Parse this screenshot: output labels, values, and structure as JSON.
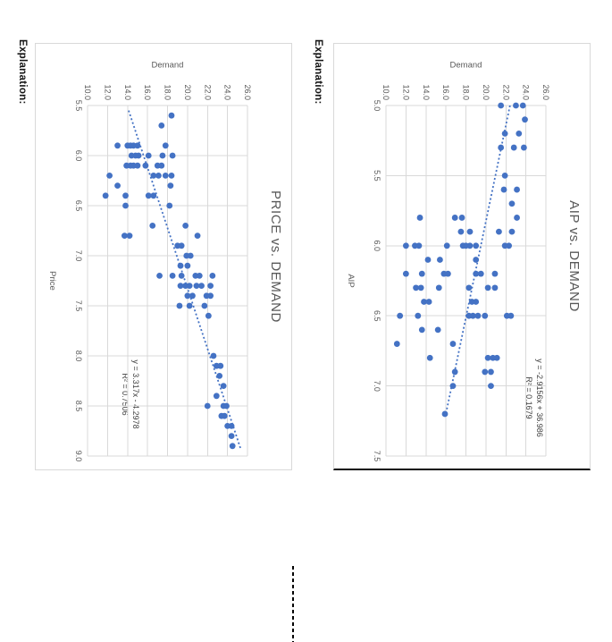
{
  "page": {
    "explanation_label": "Explanation:"
  },
  "colors": {
    "marker": "#4472C4",
    "trendline": "#4472C4",
    "grid": "#d9d9d9",
    "axis_text": "#595959",
    "equation_text": "#404040",
    "title_text": "#595959"
  },
  "chart_data": [
    {
      "type": "scatter",
      "title": "PRICE vs. DEMAND",
      "xlabel": "Price",
      "ylabel": "Demand",
      "xlim": [
        5.5,
        9.0
      ],
      "ylim": [
        10.0,
        26.0
      ],
      "x_ticks": [
        "5.5",
        "6.0",
        "6.5",
        "7.0",
        "7.5",
        "8.0",
        "8.5",
        "9.0"
      ],
      "y_ticks": [
        "10.0",
        "12.0",
        "14.0",
        "16.0",
        "18.0",
        "20.0",
        "22.0",
        "24.0",
        "26.0"
      ],
      "grid": true,
      "legend": "none",
      "marker_color": "#4472C4",
      "trendline": {
        "style": "dotted",
        "slope": 3.317,
        "intercept": -4.2978,
        "x_start": 5.55,
        "x_end": 8.92,
        "equation_label": "y = 3.317x - 4.2978",
        "r2_label": "R² = 0.7506"
      },
      "points": [
        [
          5.6,
          18.4
        ],
        [
          5.7,
          17.4
        ],
        [
          5.9,
          13.0
        ],
        [
          5.9,
          14.0
        ],
        [
          5.9,
          14.3
        ],
        [
          5.9,
          14.6
        ],
        [
          5.9,
          15.0
        ],
        [
          5.9,
          17.8
        ],
        [
          6.0,
          14.4
        ],
        [
          6.0,
          14.8
        ],
        [
          6.0,
          15.1
        ],
        [
          6.0,
          16.1
        ],
        [
          6.0,
          17.5
        ],
        [
          6.0,
          18.5
        ],
        [
          6.1,
          13.9
        ],
        [
          6.1,
          14.3
        ],
        [
          6.1,
          14.6
        ],
        [
          6.1,
          15.0
        ],
        [
          6.1,
          15.8
        ],
        [
          6.1,
          17.0
        ],
        [
          6.1,
          17.4
        ],
        [
          6.2,
          12.2
        ],
        [
          6.2,
          16.6
        ],
        [
          6.2,
          17.1
        ],
        [
          6.2,
          17.8
        ],
        [
          6.2,
          18.4
        ],
        [
          6.3,
          13.0
        ],
        [
          6.3,
          18.3
        ],
        [
          6.4,
          11.8
        ],
        [
          6.4,
          13.8
        ],
        [
          6.4,
          16.1
        ],
        [
          6.4,
          16.6
        ],
        [
          6.5,
          13.8
        ],
        [
          6.5,
          18.2
        ],
        [
          6.7,
          16.5
        ],
        [
          6.7,
          19.8
        ],
        [
          6.8,
          13.7
        ],
        [
          6.8,
          14.2
        ],
        [
          6.8,
          21.0
        ],
        [
          6.9,
          19.0
        ],
        [
          6.9,
          19.4
        ],
        [
          7.0,
          19.9
        ],
        [
          7.0,
          20.3
        ],
        [
          7.1,
          19.3
        ],
        [
          7.1,
          20.0
        ],
        [
          7.2,
          17.2
        ],
        [
          7.2,
          18.5
        ],
        [
          7.2,
          19.4
        ],
        [
          7.2,
          20.8
        ],
        [
          7.2,
          21.2
        ],
        [
          7.2,
          22.5
        ],
        [
          7.3,
          19.3
        ],
        [
          7.3,
          19.8
        ],
        [
          7.3,
          20.2
        ],
        [
          7.3,
          20.9
        ],
        [
          7.3,
          21.4
        ],
        [
          7.3,
          22.3
        ],
        [
          7.4,
          20.0
        ],
        [
          7.4,
          20.5
        ],
        [
          7.4,
          21.9
        ],
        [
          7.4,
          22.3
        ],
        [
          7.5,
          19.2
        ],
        [
          7.5,
          20.2
        ],
        [
          7.5,
          21.7
        ],
        [
          7.6,
          22.1
        ],
        [
          8.0,
          22.6
        ],
        [
          8.1,
          22.9
        ],
        [
          8.1,
          23.3
        ],
        [
          8.2,
          23.2
        ],
        [
          8.3,
          23.6
        ],
        [
          8.4,
          22.9
        ],
        [
          8.5,
          22.0
        ],
        [
          8.5,
          23.6
        ],
        [
          8.5,
          23.9
        ],
        [
          8.6,
          23.4
        ],
        [
          8.6,
          23.7
        ],
        [
          8.7,
          24.0
        ],
        [
          8.7,
          24.4
        ],
        [
          8.8,
          24.4
        ],
        [
          8.9,
          24.5
        ]
      ]
    },
    {
      "type": "scatter",
      "title": "AIP vs. DEMAND",
      "xlabel": "AIP",
      "ylabel": "Demand",
      "xlim": [
        5.0,
        7.5
      ],
      "ylim": [
        10.0,
        26.0
      ],
      "x_ticks": [
        "5.0",
        "5.5",
        "6.0",
        "6.5",
        "7.0",
        "7.5"
      ],
      "y_ticks": [
        "10.0",
        "12.0",
        "14.0",
        "16.0",
        "18.0",
        "20.0",
        "22.0",
        "24.0",
        "26.0"
      ],
      "grid": true,
      "legend": "none",
      "marker_color": "#4472C4",
      "trendline": {
        "style": "dotted",
        "slope": -2.9156,
        "intercept": 36.986,
        "x_start": 5.0,
        "x_end": 7.18,
        "equation_label": "y = -2.9156x + 36.986",
        "r2_label": "R² = 0.1679"
      },
      "points": [
        [
          5.0,
          21.5
        ],
        [
          5.0,
          23.0
        ],
        [
          5.0,
          23.7
        ],
        [
          5.1,
          23.9
        ],
        [
          5.2,
          21.9
        ],
        [
          5.2,
          23.3
        ],
        [
          5.3,
          21.5
        ],
        [
          5.3,
          22.8
        ],
        [
          5.3,
          23.8
        ],
        [
          5.5,
          21.9
        ],
        [
          5.6,
          21.8
        ],
        [
          5.6,
          23.1
        ],
        [
          5.7,
          22.6
        ],
        [
          5.8,
          13.4
        ],
        [
          5.8,
          16.9
        ],
        [
          5.8,
          17.6
        ],
        [
          5.8,
          23.1
        ],
        [
          5.9,
          17.5
        ],
        [
          5.9,
          18.4
        ],
        [
          5.9,
          21.3
        ],
        [
          5.9,
          22.6
        ],
        [
          6.0,
          12.0
        ],
        [
          6.0,
          12.9
        ],
        [
          6.0,
          13.3
        ],
        [
          6.0,
          16.1
        ],
        [
          6.0,
          17.7
        ],
        [
          6.0,
          18.0
        ],
        [
          6.0,
          18.4
        ],
        [
          6.0,
          19.0
        ],
        [
          6.0,
          21.9
        ],
        [
          6.0,
          22.3
        ],
        [
          6.1,
          14.2
        ],
        [
          6.1,
          15.4
        ],
        [
          6.1,
          19.0
        ],
        [
          6.2,
          12.0
        ],
        [
          6.2,
          13.6
        ],
        [
          6.2,
          15.8
        ],
        [
          6.2,
          16.2
        ],
        [
          6.2,
          19.0
        ],
        [
          6.2,
          19.5
        ],
        [
          6.2,
          20.9
        ],
        [
          6.3,
          13.0
        ],
        [
          6.3,
          13.5
        ],
        [
          6.3,
          15.3
        ],
        [
          6.3,
          18.3
        ],
        [
          6.3,
          20.2
        ],
        [
          6.3,
          20.9
        ],
        [
          6.4,
          13.8
        ],
        [
          6.4,
          14.3
        ],
        [
          6.4,
          18.6
        ],
        [
          6.4,
          19.0
        ],
        [
          6.5,
          11.4
        ],
        [
          6.5,
          13.2
        ],
        [
          6.5,
          18.3
        ],
        [
          6.5,
          18.7
        ],
        [
          6.5,
          19.2
        ],
        [
          6.5,
          19.9
        ],
        [
          6.5,
          22.1
        ],
        [
          6.5,
          22.5
        ],
        [
          6.6,
          13.6
        ],
        [
          6.6,
          15.2
        ],
        [
          6.7,
          11.1
        ],
        [
          6.7,
          16.7
        ],
        [
          6.8,
          14.4
        ],
        [
          6.8,
          20.2
        ],
        [
          6.8,
          20.7
        ],
        [
          6.8,
          21.1
        ],
        [
          6.9,
          16.9
        ],
        [
          6.9,
          19.9
        ],
        [
          6.9,
          20.5
        ],
        [
          7.0,
          16.7
        ],
        [
          7.0,
          20.5
        ],
        [
          7.2,
          15.9
        ]
      ]
    }
  ]
}
